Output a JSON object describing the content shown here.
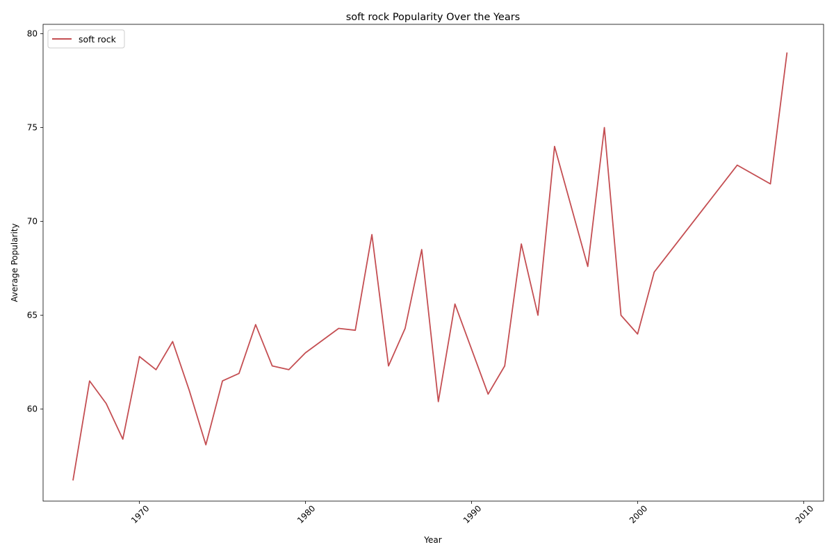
{
  "chart_data": {
    "type": "line",
    "title": "soft rock Popularity Over the Years",
    "xlabel": "Year",
    "ylabel": "Average Popularity",
    "xlim": [
      1964.2,
      2011.2
    ],
    "ylim": [
      55.1,
      80.5
    ],
    "xticks": [
      1970,
      1980,
      1990,
      2000,
      2010
    ],
    "yticks": [
      60,
      65,
      70,
      75,
      80
    ],
    "xtick_rotation": 45,
    "grid": false,
    "legend": "top-left",
    "colors": {
      "soft rock": "#c44e52"
    },
    "series": [
      {
        "name": "soft rock",
        "x": [
          1966,
          1967,
          1968,
          1969,
          1970,
          1971,
          1972,
          1973,
          1974,
          1975,
          1976,
          1977,
          1978,
          1979,
          1980,
          1982,
          1983,
          1984,
          1985,
          1986,
          1987,
          1988,
          1989,
          1991,
          1992,
          1993,
          1994,
          1995,
          1997,
          1998,
          1999,
          2000,
          2001,
          2006,
          2008,
          2009
        ],
        "y": [
          56.2,
          61.5,
          60.3,
          58.4,
          62.8,
          62.1,
          63.6,
          61.0,
          58.1,
          61.5,
          61.9,
          64.5,
          62.3,
          62.1,
          63.0,
          64.3,
          64.2,
          69.3,
          62.3,
          64.3,
          68.5,
          60.4,
          65.6,
          60.8,
          62.3,
          68.8,
          65.0,
          74.0,
          67.6,
          75.0,
          65.0,
          64.0,
          67.3,
          73.0,
          72.0,
          79.0
        ]
      }
    ]
  }
}
